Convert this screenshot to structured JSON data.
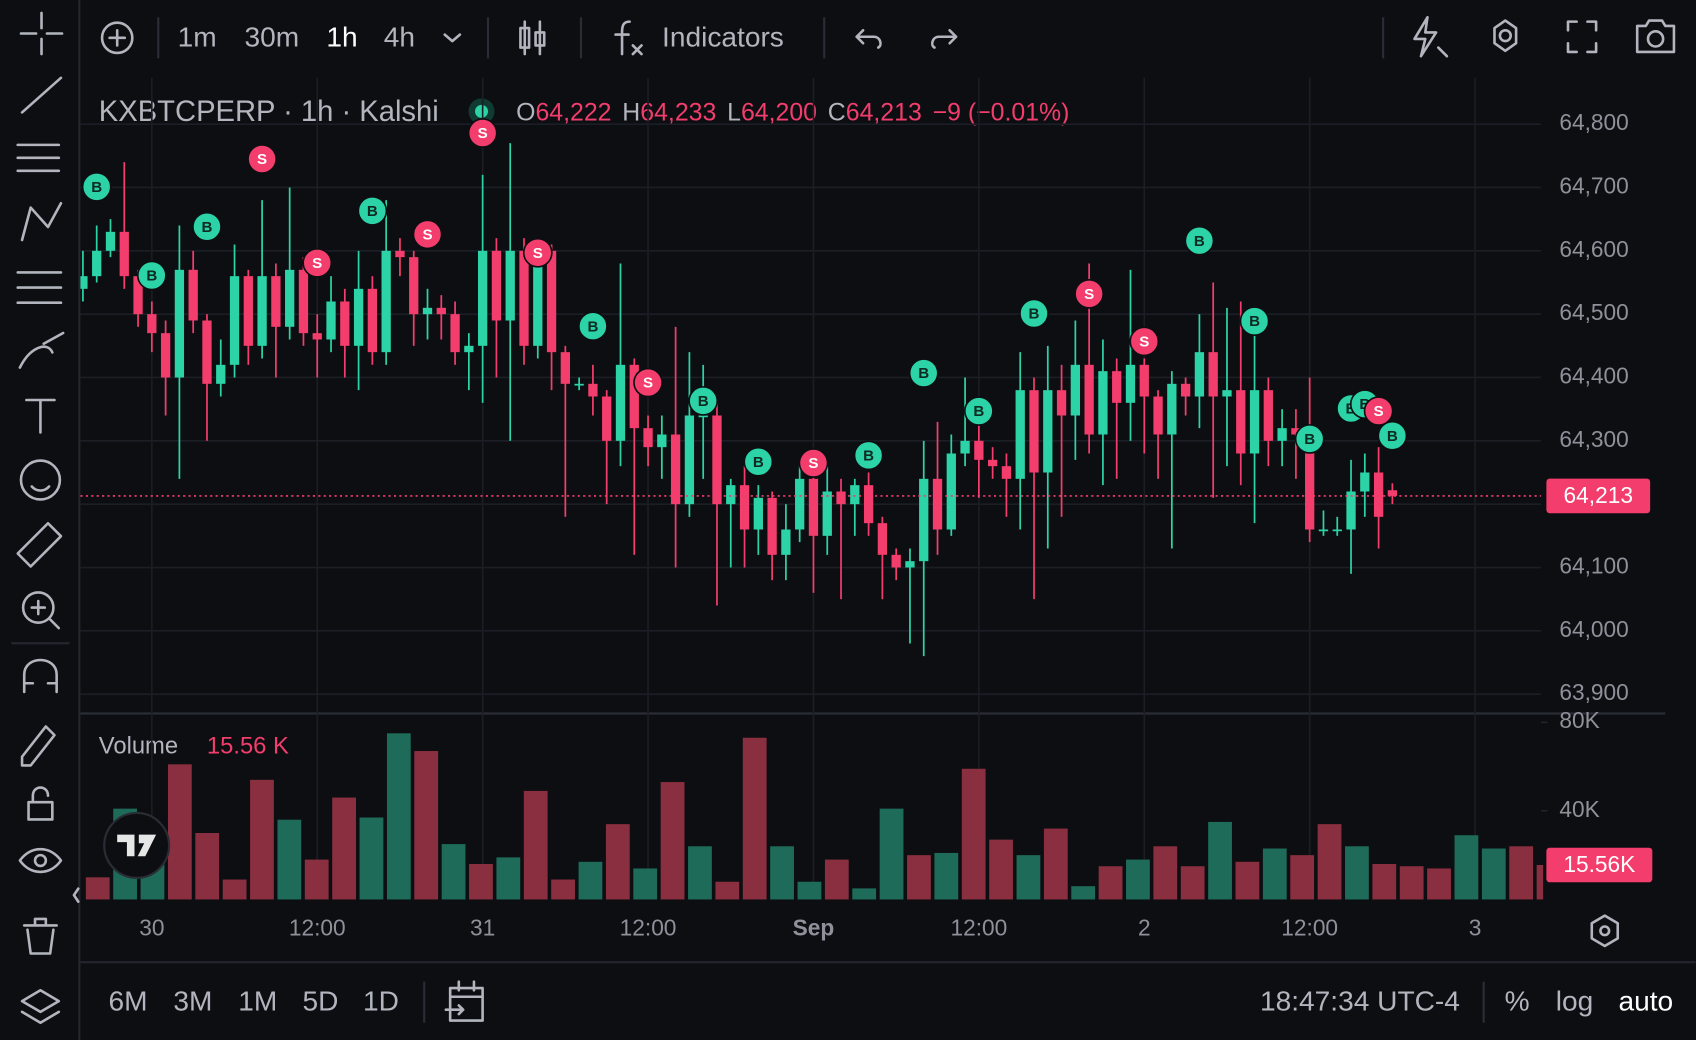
{
  "toolbar": {
    "intervals": [
      "1m",
      "30m",
      "1h",
      "4h"
    ],
    "indicators": "Indicators"
  },
  "bottom_bar": {
    "ranges": [
      "6M",
      "3M",
      "1M",
      "5D",
      "1D"
    ],
    "clock": "18:47:34 UTC-4",
    "options": [
      "%",
      "log",
      "auto"
    ]
  },
  "chart_data": {
    "type": "candlestick",
    "title": "KXBTCPERP · 1h · Kalshi",
    "legend": {
      "open": {
        "label": "O",
        "value": "64,222"
      },
      "high": {
        "label": "H",
        "value": "64,233"
      },
      "low": {
        "label": "L",
        "value": "64,200"
      },
      "close": {
        "label": "C",
        "value": "64,213"
      },
      "change": "−9 (−0.01%)"
    },
    "up_color": "#2bd3a6",
    "down_color": "#f23d6d",
    "ylim": [
      63878,
      64868
    ],
    "yticks": [
      {
        "value": 64800,
        "label": "64,800"
      },
      {
        "value": 64700,
        "label": "64,700"
      },
      {
        "value": 64600,
        "label": "64,600"
      },
      {
        "value": 64500,
        "label": "64,500"
      },
      {
        "value": 64400,
        "label": "64,400"
      },
      {
        "value": 64300,
        "label": "64,300"
      },
      {
        "value": 64200,
        "label": "64,200"
      },
      {
        "value": 64100,
        "label": "64,100"
      },
      {
        "value": 64000,
        "label": "64,000"
      },
      {
        "value": 63900,
        "label": "63,900"
      }
    ],
    "xlim": [
      -0.18,
      105.78
    ],
    "xticks": [
      {
        "value": 5,
        "label": "30"
      },
      {
        "value": 17,
        "label": "12:00"
      },
      {
        "value": 29,
        "label": "31"
      },
      {
        "value": 41,
        "label": "12:00"
      },
      {
        "value": 53,
        "label": "Sep"
      },
      {
        "value": 65,
        "label": "12:00"
      },
      {
        "value": 77,
        "label": "2"
      },
      {
        "value": 89,
        "label": "12:00"
      },
      {
        "value": 101,
        "label": "3"
      }
    ],
    "grid": true,
    "last_price": {
      "value": 64213,
      "label": "64,213"
    },
    "open": [
      64540,
      64560,
      64600,
      64630,
      64560,
      64500,
      64470,
      64400,
      64570,
      64490,
      64390,
      64420,
      64560,
      64450,
      64560,
      64480,
      64570,
      64470,
      64460,
      64520,
      64450,
      64540,
      64440,
      64600,
      64590,
      64500,
      64510,
      64500,
      64440,
      64450,
      64600,
      64490,
      64600,
      64450,
      64600,
      64440,
      64390,
      64390,
      64370,
      64300,
      64420,
      64320,
      64290,
      64310,
      64200,
      64340,
      64340,
      64200,
      64230,
      64160,
      64210,
      64120,
      64160,
      64240,
      64150,
      64220,
      64200,
      64230,
      64170,
      64120,
      64100,
      64110,
      64240,
      64160,
      64280,
      64300,
      64270,
      64260,
      64240,
      64380,
      64250,
      64380,
      64340,
      64420,
      64310,
      64410,
      64360,
      64420,
      64370,
      64310,
      64390,
      64370,
      64440,
      64370,
      64380,
      64280,
      64380,
      64300,
      64320,
      64310,
      64160,
      64160,
      64160,
      64220,
      64250,
      64222
    ],
    "high": [
      64600,
      64640,
      64650,
      64740,
      64570,
      64520,
      64490,
      64640,
      64600,
      64500,
      64460,
      64610,
      64570,
      64680,
      64580,
      64700,
      64590,
      64500,
      64560,
      64540,
      64600,
      64560,
      64680,
      64620,
      64600,
      64540,
      64530,
      64520,
      64470,
      64720,
      64620,
      64770,
      64620,
      64620,
      64610,
      64450,
      64400,
      64420,
      64380,
      64580,
      64430,
      64340,
      64340,
      64480,
      64440,
      64420,
      64360,
      64240,
      64260,
      64230,
      64220,
      64200,
      64260,
      64260,
      64260,
      64240,
      64240,
      64250,
      64180,
      64130,
      64130,
      64300,
      64330,
      64310,
      64400,
      64330,
      64290,
      64280,
      64440,
      64400,
      64450,
      64420,
      64490,
      64580,
      64460,
      64430,
      64570,
      64430,
      64380,
      64410,
      64400,
      64500,
      64550,
      64510,
      64520,
      64500,
      64400,
      64350,
      64350,
      64400,
      64190,
      64180,
      64270,
      64280,
      64290,
      64233
    ],
    "low": [
      64520,
      64550,
      64590,
      64540,
      64480,
      64440,
      64340,
      64240,
      64470,
      64300,
      64370,
      64400,
      64420,
      64430,
      64400,
      64460,
      64450,
      64400,
      64440,
      64400,
      64380,
      64420,
      64420,
      64560,
      64450,
      64460,
      64460,
      64420,
      64380,
      64360,
      64400,
      64300,
      64420,
      64430,
      64380,
      64180,
      64380,
      64340,
      64200,
      64260,
      64120,
      64260,
      64240,
      64100,
      64180,
      64240,
      64040,
      64100,
      64100,
      64120,
      64080,
      64080,
      64140,
      64060,
      64120,
      64050,
      64150,
      64150,
      64050,
      64080,
      63980,
      63960,
      64120,
      64150,
      64260,
      64210,
      64240,
      64180,
      64160,
      64050,
      64130,
      64180,
      64270,
      64280,
      64230,
      64240,
      64300,
      64280,
      64240,
      64130,
      64340,
      64320,
      64210,
      64260,
      64230,
      64170,
      64260,
      64260,
      64240,
      64140,
      64150,
      64150,
      64090,
      64180,
      64130,
      64200
    ],
    "close": [
      64560,
      64600,
      64630,
      64560,
      64500,
      64470,
      64400,
      64570,
      64490,
      64390,
      64420,
      64560,
      64450,
      64560,
      64480,
      64570,
      64470,
      64460,
      64520,
      64450,
      64540,
      64440,
      64600,
      64590,
      64500,
      64510,
      64500,
      64440,
      64450,
      64600,
      64490,
      64600,
      64450,
      64600,
      64440,
      64390,
      64390,
      64370,
      64300,
      64420,
      64320,
      64290,
      64310,
      64200,
      64340,
      64340,
      64200,
      64230,
      64160,
      64210,
      64120,
      64160,
      64240,
      64150,
      64220,
      64200,
      64230,
      64170,
      64120,
      64100,
      64110,
      64240,
      64160,
      64280,
      64300,
      64270,
      64260,
      64240,
      64380,
      64250,
      64380,
      64340,
      64420,
      64310,
      64410,
      64360,
      64420,
      64370,
      64310,
      64390,
      64370,
      64440,
      64370,
      64380,
      64280,
      64380,
      64300,
      64320,
      64310,
      64160,
      64160,
      64160,
      64220,
      64250,
      64180,
      64213
    ],
    "markers": [
      {
        "side": "B",
        "candle": 1,
        "price": 64701
      },
      {
        "side": "B",
        "candle": 5,
        "price": 64561
      },
      {
        "side": "B",
        "candle": 9,
        "price": 64638
      },
      {
        "side": "S",
        "candle": 13,
        "price": 64745
      },
      {
        "side": "S",
        "candle": 17,
        "price": 64581
      },
      {
        "side": "B",
        "candle": 21,
        "price": 64663
      },
      {
        "side": "S",
        "candle": 25,
        "price": 64626
      },
      {
        "side": "S",
        "candle": 29,
        "price": 64786
      },
      {
        "side": "S",
        "candle": 33,
        "price": 64597
      },
      {
        "side": "B",
        "candle": 37,
        "price": 64481
      },
      {
        "side": "S",
        "candle": 41,
        "price": 64392
      },
      {
        "side": "B",
        "candle": 45,
        "price": 64363
      },
      {
        "side": "B",
        "candle": 49,
        "price": 64267
      },
      {
        "side": "S",
        "candle": 53,
        "price": 64265
      },
      {
        "side": "B",
        "candle": 57,
        "price": 64277
      },
      {
        "side": "B",
        "candle": 61,
        "price": 64407
      },
      {
        "side": "B",
        "candle": 65,
        "price": 64347
      },
      {
        "side": "B",
        "candle": 69,
        "price": 64501
      },
      {
        "side": "S",
        "candle": 73,
        "price": 64532
      },
      {
        "side": "S",
        "candle": 77,
        "price": 64457
      },
      {
        "side": "B",
        "candle": 81,
        "price": 64616
      },
      {
        "side": "B",
        "candle": 85,
        "price": 64489
      },
      {
        "side": "B",
        "candle": 89,
        "price": 64303
      },
      {
        "side": "B",
        "candle": 92,
        "price": 64351
      },
      {
        "side": "B",
        "candle": 93,
        "price": 64358
      },
      {
        "side": "S",
        "candle": 94,
        "price": 64347
      },
      {
        "side": "B",
        "candle": 95,
        "price": 64308
      }
    ],
    "volume": {
      "name": "Volume",
      "current": "15.56 K",
      "ylim": [
        0,
        81500
      ],
      "yticks": [
        {
          "value": 80000,
          "label": "80K"
        },
        {
          "value": 40000,
          "label": "40K"
        }
      ],
      "values": [
        10000,
        41000,
        25000,
        61000,
        30000,
        9000,
        54000,
        36000,
        18000,
        46000,
        37000,
        75000,
        67000,
        25000,
        16000,
        19000,
        49000,
        9000,
        17000,
        34000,
        14000,
        53000,
        24000,
        8000,
        73000,
        24000,
        8000,
        18000,
        5000,
        41000,
        20000,
        21000,
        59000,
        27000,
        20000,
        32000,
        6000,
        15000,
        18000,
        24000,
        15000,
        35000,
        17000,
        23000,
        20000,
        34000,
        24000,
        16000,
        15000,
        14000,
        29000,
        23000,
        24000,
        15560
      ],
      "value_labels": {
        "53": "15.56K"
      },
      "colors": [
        "#8a2f3f",
        "#1d6b58",
        "#1d6b58",
        "#8a2f3f",
        "#8a2f3f",
        "#8a2f3f",
        "#8a2f3f",
        "#1d6b58",
        "#8a2f3f",
        "#8a2f3f",
        "#1d6b58",
        "#1d6b58",
        "#8a2f3f",
        "#1d6b58",
        "#8a2f3f",
        "#1d6b58",
        "#8a2f3f",
        "#8a2f3f",
        "#1d6b58",
        "#8a2f3f",
        "#1d6b58",
        "#8a2f3f",
        "#1d6b58",
        "#8a2f3f",
        "#8a2f3f",
        "#1d6b58",
        "#1d6b58",
        "#8a2f3f",
        "#1d6b58",
        "#1d6b58",
        "#8a2f3f",
        "#1d6b58",
        "#8a2f3f",
        "#8a2f3f",
        "#1d6b58",
        "#8a2f3f",
        "#1d6b58",
        "#8a2f3f",
        "#1d6b58",
        "#8a2f3f",
        "#8a2f3f",
        "#1d6b58",
        "#8a2f3f",
        "#1d6b58",
        "#8a2f3f",
        "#8a2f3f",
        "#1d6b58",
        "#8a2f3f",
        "#8a2f3f",
        "#8a2f3f",
        "#1d6b58",
        "#1d6b58",
        "#8a2f3f",
        "#8a2f3f"
      ]
    }
  }
}
